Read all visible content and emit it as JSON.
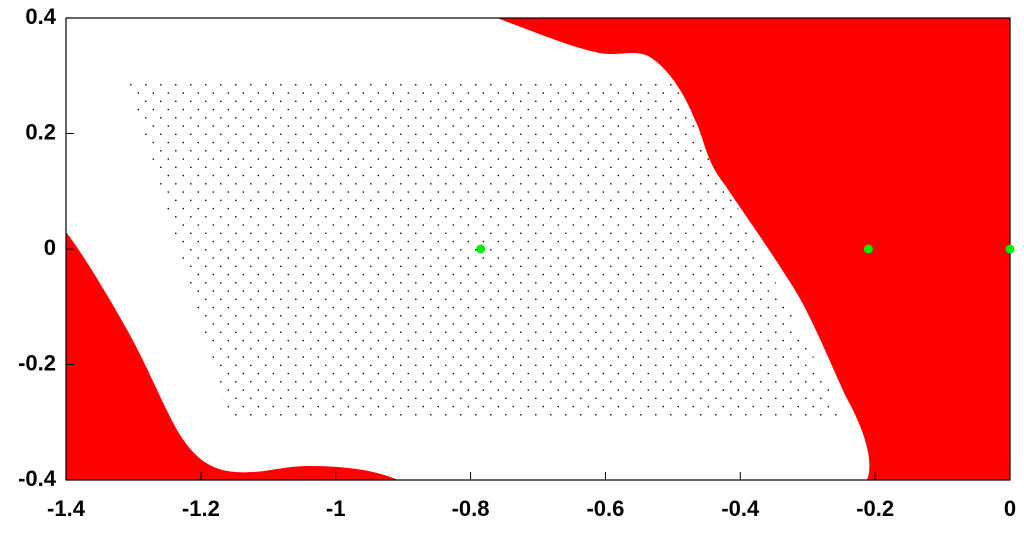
{
  "chart_data": {
    "type": "scatter",
    "x": [
      -0.785,
      -0.21,
      0
    ],
    "values": [
      0,
      0,
      0
    ],
    "color": "#00ee00",
    "xlim": [
      -1.4,
      0
    ],
    "ylim": [
      -0.4,
      0.4
    ],
    "xticks": [
      -1.4,
      -1.2,
      -1,
      -0.8,
      -0.6,
      -0.4,
      -0.2,
      0
    ],
    "yticks": [
      -0.4,
      -0.2,
      0,
      0.2,
      0.4
    ]
  }
}
